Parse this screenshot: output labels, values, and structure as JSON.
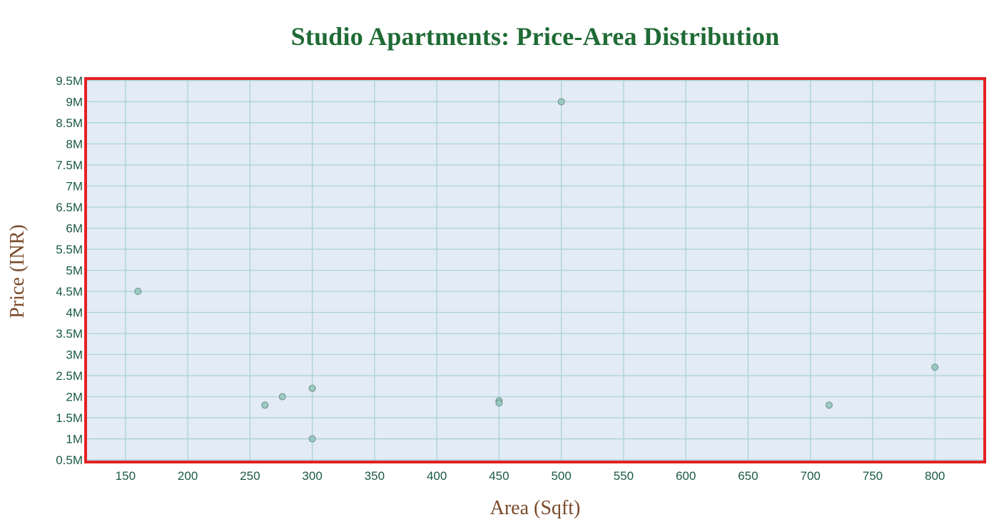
{
  "chart_data": {
    "type": "scatter",
    "title": "Studio Apartments: Price-Area Distribution",
    "xlabel": "Area (Sqft)",
    "ylabel": "Price (INR)",
    "xlim": [
      118,
      840
    ],
    "ylim": [
      450000,
      9550000
    ],
    "xticks": [
      150,
      200,
      250,
      300,
      350,
      400,
      450,
      500,
      550,
      600,
      650,
      700,
      750,
      800
    ],
    "xtick_labels": [
      "150",
      "200",
      "250",
      "300",
      "350",
      "400",
      "450",
      "500",
      "550",
      "600",
      "650",
      "700",
      "750",
      "800"
    ],
    "yticks": [
      500000,
      1000000,
      1500000,
      2000000,
      2500000,
      3000000,
      3500000,
      4000000,
      4500000,
      5000000,
      5500000,
      6000000,
      6500000,
      7000000,
      7500000,
      8000000,
      8500000,
      9000000,
      9500000
    ],
    "ytick_labels": [
      "0.5M",
      "1M",
      "1.5M",
      "2M",
      "2.5M",
      "3M",
      "3.5M",
      "4M",
      "4.5M",
      "5M",
      "5.5M",
      "6M",
      "6.5M",
      "7M",
      "7.5M",
      "8M",
      "8.5M",
      "9M",
      "9.5M"
    ],
    "grid": true,
    "points": [
      {
        "x": 160,
        "y": 4500000
      },
      {
        "x": 262,
        "y": 1800000
      },
      {
        "x": 276,
        "y": 2000000
      },
      {
        "x": 300,
        "y": 2200000
      },
      {
        "x": 300,
        "y": 1000000
      },
      {
        "x": 450,
        "y": 1900000
      },
      {
        "x": 450,
        "y": 1850000
      },
      {
        "x": 500,
        "y": 9000000
      },
      {
        "x": 715,
        "y": 1800000
      },
      {
        "x": 800,
        "y": 2700000
      }
    ],
    "colors": {
      "plot_background": "#e3ebf6",
      "grid": "#a9d3d6",
      "frame": "#e52124",
      "marker_fill": "#93c8bd",
      "marker_stroke": "#6f8f8a",
      "title": "#1f6b35",
      "tick_text": "#1a5a40",
      "axis_title": "#7a4a2a"
    }
  }
}
